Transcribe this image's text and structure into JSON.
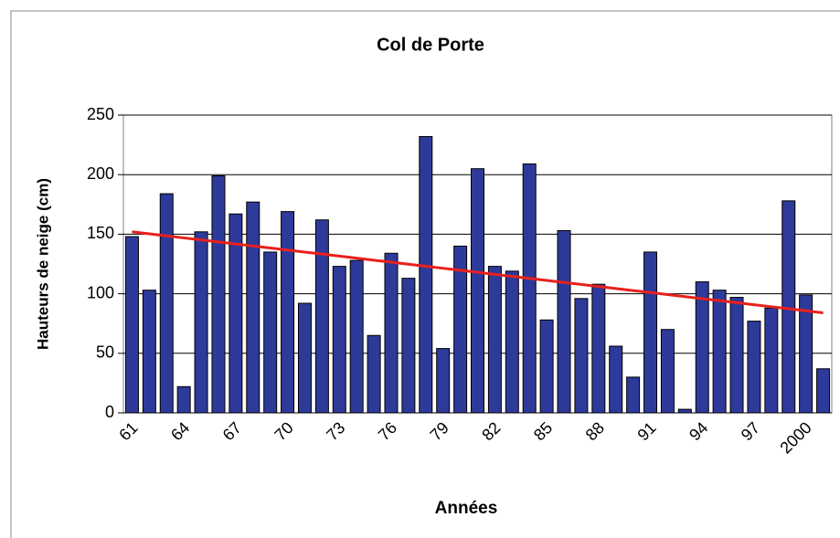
{
  "chart_data": {
    "type": "bar",
    "title": "Col de Porte",
    "y_label": "Hauteurs de neige (cm)",
    "x_label": "Années",
    "categories": [
      "61",
      null,
      null,
      "64",
      null,
      null,
      "67",
      null,
      null,
      "70",
      null,
      null,
      "73",
      null,
      null,
      "76",
      null,
      null,
      "79",
      null,
      null,
      "82",
      null,
      null,
      "85",
      null,
      null,
      "88",
      null,
      null,
      "91",
      null,
      null,
      "94",
      null,
      null,
      "97",
      null,
      null,
      "2000",
      null
    ],
    "values": [
      148,
      103,
      184,
      22,
      152,
      199,
      167,
      177,
      135,
      169,
      92,
      162,
      123,
      128,
      65,
      134,
      113,
      232,
      54,
      140,
      205,
      123,
      119,
      209,
      78,
      153,
      96,
      108,
      56,
      30,
      135,
      70,
      3,
      110,
      103,
      97,
      77,
      88,
      178,
      99,
      37
    ],
    "color": "#2e3a9a",
    "trend": {
      "color": "#e8201c",
      "values": [
        152,
        150.3,
        148.6,
        146.9,
        145.2,
        143.5,
        141.8,
        140.1,
        138.4,
        136.7,
        135,
        133.3,
        131.6,
        129.9,
        128.2,
        126.5,
        124.8,
        123.1,
        121.4,
        119.7,
        118,
        116.3,
        114.6,
        112.9,
        111.2,
        109.5,
        107.8,
        106.1,
        104.4,
        102.7,
        101,
        99.3,
        97.6,
        95.9,
        94.2,
        92.5,
        90.8,
        89.1,
        87.4,
        85.7,
        84
      ]
    },
    "ylim": [
      0,
      250
    ],
    "yticks": [
      0,
      50,
      100,
      150,
      200,
      250
    ],
    "grid": true
  }
}
